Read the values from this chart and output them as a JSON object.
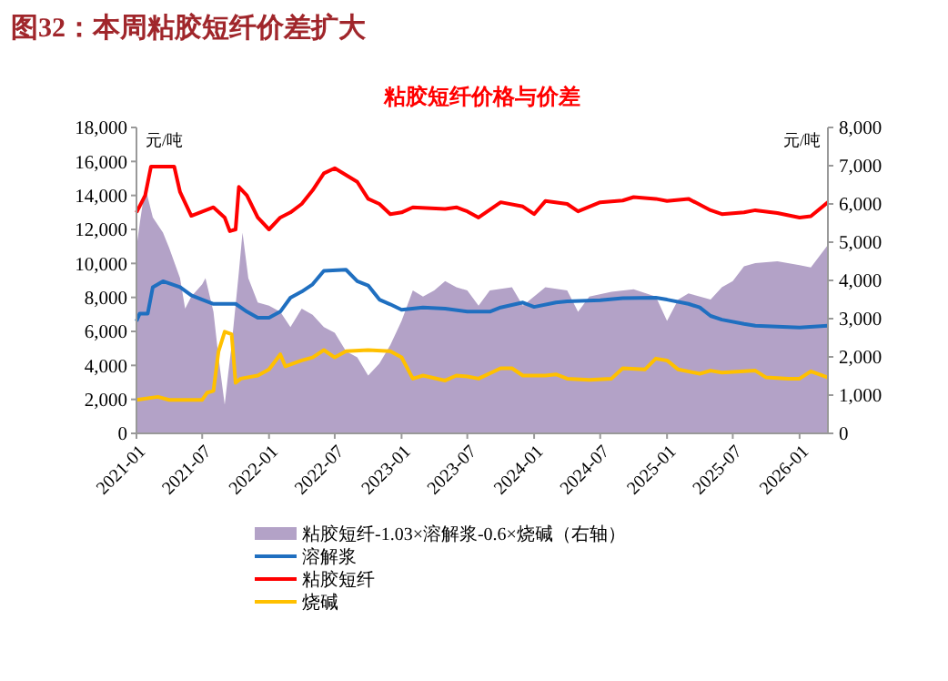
{
  "chart_data": {
    "type": "line",
    "title": "图32：本周粘胶短纤价差扩大",
    "subtitle": "粘胶短纤价格与价差",
    "ylabel": "元/吨",
    "y2label": "元/吨",
    "xlim": [
      "2021-01-01",
      "2026-03-20"
    ],
    "xticks": [
      "2021-01",
      "2021-07",
      "2022-01",
      "2022-07",
      "2023-01",
      "2023-07",
      "2024-01",
      "2024-07",
      "2025-01",
      "2025-07",
      "2026-01"
    ],
    "ylim": [
      0,
      18000
    ],
    "yticks": [
      0,
      {
        "value": 2000,
        "label": "2,000"
      },
      {
        "value": 4000,
        "label": "4,000"
      },
      {
        "value": 6000,
        "label": "6,000"
      },
      {
        "value": 8000,
        "label": "8,000"
      },
      {
        "value": 10000,
        "label": "10,000"
      },
      {
        "value": 12000,
        "label": "12,000"
      },
      {
        "value": 14000,
        "label": "14,000"
      },
      {
        "value": 16000,
        "label": "16,000"
      },
      {
        "value": 18000,
        "label": "18,000"
      }
    ],
    "y2lim": [
      0,
      8000
    ],
    "y2ticks": [
      0,
      {
        "value": 1000,
        "label": "1,000"
      },
      {
        "value": 2000,
        "label": "2,000"
      },
      {
        "value": 3000,
        "label": "3,000"
      },
      {
        "value": 4000,
        "label": "4,000"
      },
      {
        "value": 5000,
        "label": "5,000"
      },
      {
        "value": 6000,
        "label": "6,000"
      },
      {
        "value": 7000,
        "label": "7,000"
      },
      {
        "value": 8000,
        "label": "8,000"
      }
    ],
    "grid": false,
    "legend": "bottom",
    "series": [
      {
        "name": "粘胶短纤-1.03×溶解浆-0.6×烧碱（右轴）",
        "type": "area",
        "axis": "y2",
        "color": "#b3a2c7",
        "x": [
          "2021-01-01",
          "2021-01-10",
          "2021-01-25",
          "2021-02-15",
          "2021-03-15",
          "2021-04-01",
          "2021-05-01",
          "2021-05-15",
          "2021-06-01",
          "2021-07-01",
          "2021-07-10",
          "2021-07-20",
          "2021-08-01",
          "2021-08-15",
          "2021-09-01",
          "2021-09-10",
          "2021-09-20",
          "2021-10-10",
          "2021-10-20",
          "2021-11-05",
          "2021-12-01",
          "2022-01-01",
          "2022-02-01",
          "2022-03-01",
          "2022-04-01",
          "2022-05-01",
          "2022-06-01",
          "2022-07-01",
          "2022-08-01",
          "2022-09-01",
          "2022-10-01",
          "2022-11-01",
          "2022-12-01",
          "2023-01-01",
          "2023-02-01",
          "2023-03-01",
          "2023-04-01",
          "2023-05-01",
          "2023-06-01",
          "2023-07-01",
          "2023-08-01",
          "2023-09-01",
          "2023-11-01",
          "2023-12-01",
          "2024-02-01",
          "2024-04-01",
          "2024-05-01",
          "2024-06-01",
          "2024-08-01",
          "2024-10-01",
          "2024-12-01",
          "2025-01-01",
          "2025-02-01",
          "2025-03-01",
          "2025-05-01",
          "2025-06-01",
          "2025-07-01",
          "2025-08-01",
          "2025-09-01",
          "2025-11-01",
          "2026-01-01",
          "2026-02-01",
          "2026-03-20"
        ],
        "values": [
          4850,
          5490,
          6440,
          5650,
          5250,
          4850,
          4060,
          3260,
          3580,
          3900,
          4060,
          3660,
          3180,
          1990,
          750,
          1510,
          2310,
          4220,
          5250,
          4060,
          3420,
          3340,
          3180,
          2780,
          3260,
          3100,
          2780,
          2630,
          2150,
          1990,
          1510,
          1830,
          2310,
          2940,
          3740,
          3580,
          3740,
          3980,
          3820,
          3740,
          3340,
          3740,
          3820,
          3340,
          3820,
          3740,
          3180,
          3580,
          3700,
          3770,
          3580,
          2940,
          3500,
          3660,
          3500,
          3820,
          3980,
          4370,
          4450,
          4500,
          4400,
          4340,
          4930
        ]
      },
      {
        "name": "溶解浆",
        "color": "#1f6fc0",
        "x": [
          "2021-01-01",
          "2021-01-10",
          "2021-02-01",
          "2021-02-15",
          "2021-03-15",
          "2021-05-01",
          "2021-06-01",
          "2021-07-01",
          "2021-08-01",
          "2021-10-01",
          "2021-11-01",
          "2021-12-01",
          "2022-01-01",
          "2022-02-01",
          "2022-03-01",
          "2022-04-01",
          "2022-05-01",
          "2022-06-01",
          "2022-08-01",
          "2022-09-01",
          "2022-10-01",
          "2022-11-01",
          "2022-12-01",
          "2023-01-01",
          "2023-03-01",
          "2023-05-01",
          "2023-07-01",
          "2023-09-01",
          "2023-10-01",
          "2023-12-01",
          "2024-01-01",
          "2024-03-01",
          "2024-04-01",
          "2024-07-01",
          "2024-09-01",
          "2024-12-01",
          "2025-01-01",
          "2025-03-01",
          "2025-04-01",
          "2025-05-01",
          "2025-06-01",
          "2025-08-01",
          "2025-09-01",
          "2025-12-01",
          "2026-01-01",
          "2026-03-20"
        ],
        "values": [
          6600,
          7050,
          7050,
          8600,
          8950,
          8600,
          8120,
          7870,
          7620,
          7620,
          7160,
          6800,
          6800,
          7160,
          7980,
          8340,
          8770,
          9560,
          9630,
          8950,
          8700,
          7870,
          7590,
          7270,
          7410,
          7340,
          7160,
          7160,
          7410,
          7700,
          7440,
          7700,
          7770,
          7840,
          7950,
          7980,
          7870,
          7620,
          7410,
          6910,
          6690,
          6440,
          6330,
          6260,
          6230,
          6330
        ]
      },
      {
        "name": "粘胶短纤",
        "color": "#ff0000",
        "x": [
          "2021-01-01",
          "2021-01-25",
          "2021-02-10",
          "2021-04-15",
          "2021-05-01",
          "2021-06-01",
          "2021-08-01",
          "2021-09-01",
          "2021-09-15",
          "2021-10-01",
          "2021-10-10",
          "2021-11-01",
          "2021-12-01",
          "2022-01-01",
          "2022-02-01",
          "2022-03-01",
          "2022-04-01",
          "2022-05-01",
          "2022-06-01",
          "2022-07-01",
          "2022-09-01",
          "2022-10-01",
          "2022-11-01",
          "2022-12-01",
          "2023-01-01",
          "2023-02-01",
          "2023-05-01",
          "2023-06-01",
          "2023-07-01",
          "2023-08-01",
          "2023-10-01",
          "2023-12-01",
          "2024-01-01",
          "2024-02-01",
          "2024-04-01",
          "2024-05-01",
          "2024-07-01",
          "2024-09-01",
          "2024-10-01",
          "2024-12-01",
          "2025-01-01",
          "2025-03-01",
          "2025-05-01",
          "2025-06-01",
          "2025-08-01",
          "2025-09-01",
          "2025-11-01",
          "2026-01-01",
          "2026-02-01",
          "2026-03-20"
        ],
        "values": [
          13000,
          14000,
          15700,
          15700,
          14200,
          12800,
          13300,
          12700,
          11900,
          12000,
          14500,
          14000,
          12700,
          12000,
          12700,
          13000,
          13500,
          14300,
          15300,
          15600,
          14800,
          13800,
          13500,
          12900,
          13000,
          13300,
          13200,
          13300,
          13060,
          12700,
          13600,
          13350,
          12900,
          13670,
          13500,
          13060,
          13600,
          13700,
          13900,
          13800,
          13670,
          13800,
          13130,
          12900,
          13000,
          13130,
          12960,
          12700,
          12780,
          13600
        ]
      },
      {
        "name": "烧碱",
        "color": "#ffc000",
        "x": [
          "2021-01-01",
          "2021-03-01",
          "2021-04-01",
          "2021-07-01",
          "2021-07-15",
          "2021-08-01",
          "2021-08-15",
          "2021-09-01",
          "2021-09-20",
          "2021-10-01",
          "2021-10-15",
          "2021-12-01",
          "2022-01-01",
          "2022-02-01",
          "2022-02-15",
          "2022-04-01",
          "2022-05-01",
          "2022-06-01",
          "2022-07-01",
          "2022-08-01",
          "2022-10-01",
          "2022-12-01",
          "2023-01-01",
          "2023-02-01",
          "2023-03-01",
          "2023-05-01",
          "2023-06-01",
          "2023-07-01",
          "2023-08-01",
          "2023-10-01",
          "2023-11-01",
          "2023-12-01",
          "2024-02-01",
          "2024-03-01",
          "2024-04-01",
          "2024-06-01",
          "2024-08-01",
          "2024-09-01",
          "2024-11-01",
          "2024-12-01",
          "2025-01-01",
          "2025-02-01",
          "2025-04-01",
          "2025-05-01",
          "2025-06-01",
          "2025-09-01",
          "2025-10-01",
          "2025-12-01",
          "2026-01-01",
          "2026-02-01",
          "2026-03-20"
        ],
        "values": [
          1970,
          2150,
          1970,
          1970,
          2400,
          2500,
          4830,
          5980,
          5830,
          2970,
          3220,
          3400,
          3760,
          4650,
          3940,
          4290,
          4470,
          4900,
          4470,
          4830,
          4900,
          4830,
          4470,
          3220,
          3400,
          3110,
          3400,
          3350,
          3220,
          3830,
          3830,
          3400,
          3400,
          3470,
          3220,
          3150,
          3220,
          3830,
          3760,
          4400,
          4290,
          3760,
          3510,
          3690,
          3580,
          3690,
          3290,
          3220,
          3220,
          3650,
          3290
        ]
      }
    ]
  }
}
